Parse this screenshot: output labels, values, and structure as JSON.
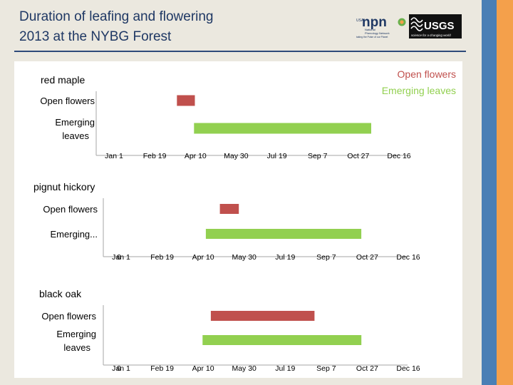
{
  "header": {
    "title_line1": "Duration of leafing and flowering",
    "title_line2": "2013 at the NYBG Forest"
  },
  "logos": {
    "npn_text": "npn",
    "npn_line1": "USA",
    "npn_sub1": "National",
    "npn_sub2": "Phenology Network",
    "npn_tagline": "taking the Pulse of our Planet",
    "usgs_text": "USGS",
    "usgs_tagline": "science for a changing world"
  },
  "legend": {
    "items": [
      {
        "label": "Open flowers",
        "color": "#c0504d"
      },
      {
        "label": "Emerging leaves",
        "color": "#92d050"
      }
    ]
  },
  "colors": {
    "flowers": "#c0504d",
    "leaves": "#92d050",
    "title": "#1f3864"
  },
  "chart_data": [
    {
      "type": "bar",
      "orientation": "horizontal",
      "title": "red maple",
      "categories": [
        "Open flowers",
        "Emerging leaves"
      ],
      "series": [
        {
          "name": "Open flowers",
          "start": "2013-03-19",
          "end": "2013-04-10"
        },
        {
          "name": "Emerging leaves",
          "start": "2013-04-09",
          "end": "2013-11-12"
        }
      ],
      "x_ticks": [
        "Jan 1",
        "Feb 19",
        "Apr 10",
        "May 30",
        "Jul 19",
        "Sep 7",
        "Oct 27",
        "Dec 16"
      ],
      "xlim": [
        "2013-01-01",
        "2013-12-16"
      ],
      "zero_label": ""
    },
    {
      "type": "bar",
      "orientation": "horizontal",
      "title": "pignut hickory",
      "categories": [
        "Open flowers",
        "Emerging..."
      ],
      "series": [
        {
          "name": "Open flowers",
          "start": "2013-05-01",
          "end": "2013-05-24"
        },
        {
          "name": "Emerging leaves",
          "start": "2013-04-14",
          "end": "2013-10-20"
        }
      ],
      "x_ticks": [
        "Jan 1",
        "Feb 19",
        "Apr 10",
        "May 30",
        "Jul 19",
        "Sep 7",
        "Oct 27",
        "Dec 16"
      ],
      "xlim": [
        "2013-01-01",
        "2013-12-16"
      ],
      "zero_label": "0"
    },
    {
      "type": "bar",
      "orientation": "horizontal",
      "title": "black oak",
      "categories": [
        "Open flowers",
        "Emerging leaves"
      ],
      "series": [
        {
          "name": "Open flowers",
          "start": "2013-04-20",
          "end": "2013-08-24"
        },
        {
          "name": "Emerging leaves",
          "start": "2013-04-10",
          "end": "2013-10-20"
        }
      ],
      "x_ticks": [
        "Jan 1",
        "Feb 19",
        "Apr 10",
        "May 30",
        "Jul 19",
        "Sep 7",
        "Oct 27",
        "Dec 16"
      ],
      "xlim": [
        "2013-01-01",
        "2013-12-16"
      ],
      "zero_label": "0"
    }
  ]
}
